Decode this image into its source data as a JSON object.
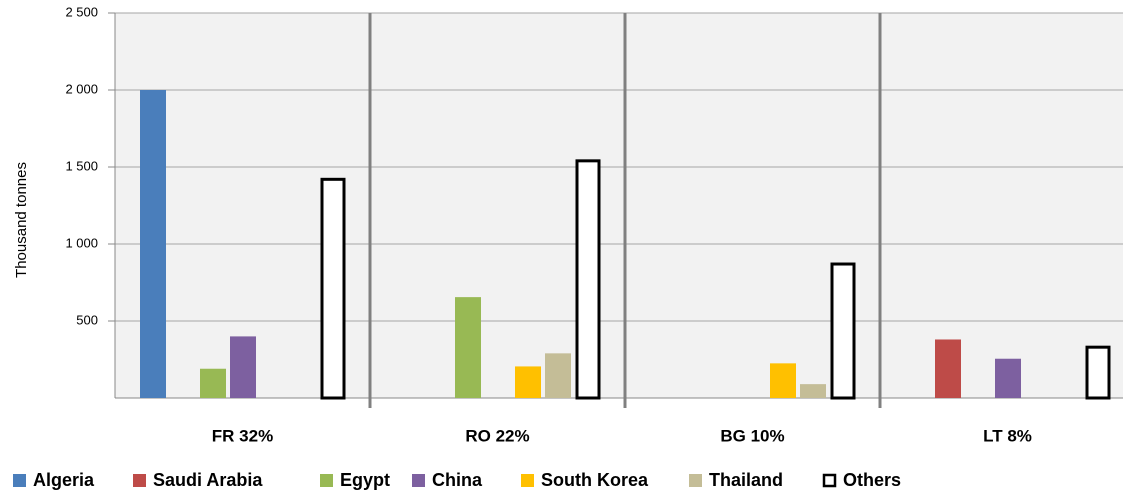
{
  "chart_data": {
    "type": "bar",
    "y_label": "Thousand tonnes",
    "categories": [
      "FR 32%",
      "RO 22%",
      "BG 10%",
      "LT 8%"
    ],
    "series": [
      {
        "name": "Algeria",
        "color": "#4a7ebb",
        "values": [
          2000,
          null,
          null,
          null
        ]
      },
      {
        "name": "Saudi Arabia",
        "color": "#be4b48",
        "values": [
          null,
          null,
          null,
          380
        ]
      },
      {
        "name": "Egypt",
        "color": "#98b954",
        "values": [
          190,
          655,
          null,
          null
        ]
      },
      {
        "name": "China",
        "color": "#7d60a0",
        "values": [
          400,
          null,
          null,
          255
        ]
      },
      {
        "name": "South Korea",
        "color": "#ffc000",
        "values": [
          null,
          205,
          225,
          null
        ]
      },
      {
        "name": "Thailand",
        "color": "#c4bd97",
        "values": [
          null,
          290,
          90,
          null
        ]
      },
      {
        "name": "Others",
        "color": "#ffffff",
        "edgecolor": "#000000",
        "values": [
          1420,
          1540,
          870,
          330
        ]
      }
    ],
    "ylim": [
      0,
      2500
    ],
    "yticks": [
      {
        "value": 500,
        "label": "500"
      },
      {
        "value": 1000,
        "label": "1 000"
      },
      {
        "value": 1500,
        "label": "1 500"
      },
      {
        "value": 2000,
        "label": "2 000"
      },
      {
        "value": 2500,
        "label": "2 500"
      }
    ],
    "grid": true
  }
}
